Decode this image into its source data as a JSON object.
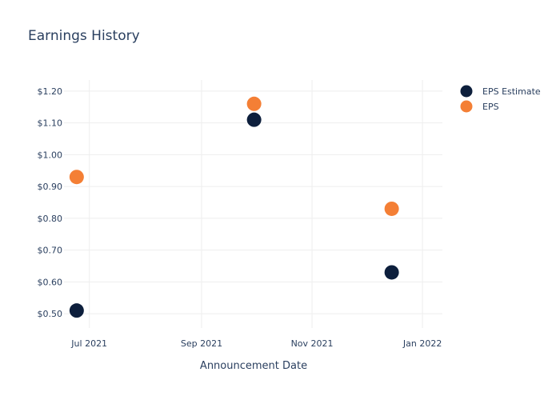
{
  "chart_data": {
    "type": "scatter",
    "title": "Earnings History",
    "xlabel": "Announcement Date",
    "ylabel": "",
    "x_ticks": [
      {
        "date": "2021-07-01",
        "label": "Jul 2021"
      },
      {
        "date": "2021-09-01",
        "label": "Sep 2021"
      },
      {
        "date": "2021-11-01",
        "label": "Nov 2021"
      },
      {
        "date": "2022-01-01",
        "label": "Jan 2022"
      }
    ],
    "y_ticks": [
      {
        "value": 0.5,
        "label": "$0.50"
      },
      {
        "value": 0.6,
        "label": "$0.60"
      },
      {
        "value": 0.7,
        "label": "$0.70"
      },
      {
        "value": 0.8,
        "label": "$0.80"
      },
      {
        "value": 0.9,
        "label": "$0.90"
      },
      {
        "value": 1.0,
        "label": "$1.00"
      },
      {
        "value": 1.1,
        "label": "$1.10"
      },
      {
        "value": 1.2,
        "label": "$1.20"
      }
    ],
    "xlim": [
      "2021-06-17",
      "2022-01-12"
    ],
    "ylim": [
      0.455,
      1.235
    ],
    "grid": true,
    "legend_position": "top-right",
    "series": [
      {
        "name": "EPS Estimate",
        "color": "#0d1f3c",
        "points": [
          {
            "x": "2021-06-24",
            "y": 0.51
          },
          {
            "x": "2021-09-30",
            "y": 1.11
          },
          {
            "x": "2021-12-15",
            "y": 0.63
          }
        ]
      },
      {
        "name": "EPS",
        "color": "#f47f35",
        "points": [
          {
            "x": "2021-06-24",
            "y": 0.93
          },
          {
            "x": "2021-09-30",
            "y": 1.16
          },
          {
            "x": "2021-12-15",
            "y": 0.83
          }
        ]
      }
    ]
  }
}
